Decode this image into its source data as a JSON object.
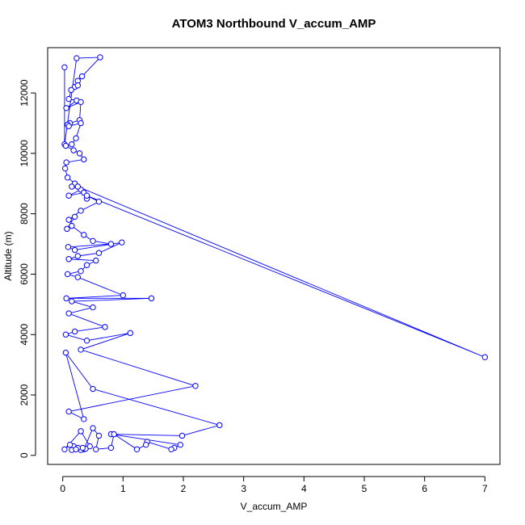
{
  "chart_data": {
    "type": "line",
    "title": "ATOM3 Northbound V_accum_AMP",
    "xlabel": "V_accum_AMP",
    "ylabel": "Altitude (m)",
    "xlim": [
      -0.25,
      7.25
    ],
    "ylim": [
      -300,
      13500
    ],
    "xticks": [
      0,
      1,
      2,
      3,
      4,
      5,
      6,
      7
    ],
    "yticks": [
      0,
      2000,
      4000,
      6000,
      8000,
      10000,
      12000
    ],
    "grid": false,
    "legend": "none",
    "line_color": "#0000ff",
    "marker": "open-circle",
    "series": [
      {
        "x": [
          0.03,
          0.03,
          0.23,
          0.62,
          0.25,
          0.32,
          0.2,
          0.25,
          0.14,
          0.1,
          0.23,
          0.06,
          0.3,
          0.28,
          0.12,
          0.08,
          0.1,
          0.3,
          0.22,
          0.15,
          0.05,
          0.18,
          0.28,
          0.35,
          0.06,
          0.04,
          0.08,
          0.2,
          0.15,
          0.3,
          0.1,
          0.35,
          0.4,
          0.25,
          7.0,
          0.4,
          0.6,
          0.3,
          0.1,
          0.2,
          0.07,
          0.15,
          0.35,
          0.5,
          0.8,
          0.09,
          0.2,
          0.98,
          0.6,
          0.25,
          0.1,
          0.55,
          0.4,
          0.3,
          0.08,
          0.25,
          1.0,
          0.06,
          1.47,
          0.15,
          0.5,
          0.1,
          0.7,
          0.2,
          0.05,
          0.4,
          1.12,
          0.3,
          2.2,
          0.1,
          0.35,
          0.05,
          0.5,
          2.6,
          1.98,
          0.8,
          1.95,
          1.85,
          1.8,
          1.4,
          1.38,
          1.23,
          0.85,
          0.8,
          0.55,
          0.6,
          0.5,
          0.35,
          0.3,
          0.38,
          0.33,
          0.18,
          0.12,
          0.03,
          0.3,
          0.45,
          0.25,
          0.15,
          0.22
        ],
        "y": [
          12850,
          10300,
          13150,
          13180,
          12400,
          12550,
          12200,
          12250,
          12100,
          11800,
          11750,
          11500,
          11700,
          11100,
          11000,
          10950,
          10900,
          11000,
          10500,
          10300,
          10250,
          10100,
          10000,
          9800,
          9700,
          9500,
          9200,
          9000,
          8900,
          8800,
          8600,
          8700,
          8500,
          8900,
          3250,
          8600,
          8400,
          8100,
          7800,
          7900,
          7500,
          7600,
          7300,
          7100,
          7000,
          6900,
          6800,
          7050,
          6700,
          6600,
          6500,
          6450,
          6300,
          6100,
          6000,
          5900,
          5300,
          5200,
          5200,
          5100,
          4900,
          4700,
          4250,
          4100,
          4000,
          3800,
          4050,
          3500,
          2300,
          1450,
          1200,
          3400,
          2200,
          1000,
          650,
          700,
          350,
          250,
          200,
          450,
          350,
          200,
          700,
          250,
          200,
          650,
          900,
          200,
          180,
          220,
          250,
          300,
          350,
          200,
          800,
          300,
          250,
          180,
          200
        ]
      }
    ]
  }
}
